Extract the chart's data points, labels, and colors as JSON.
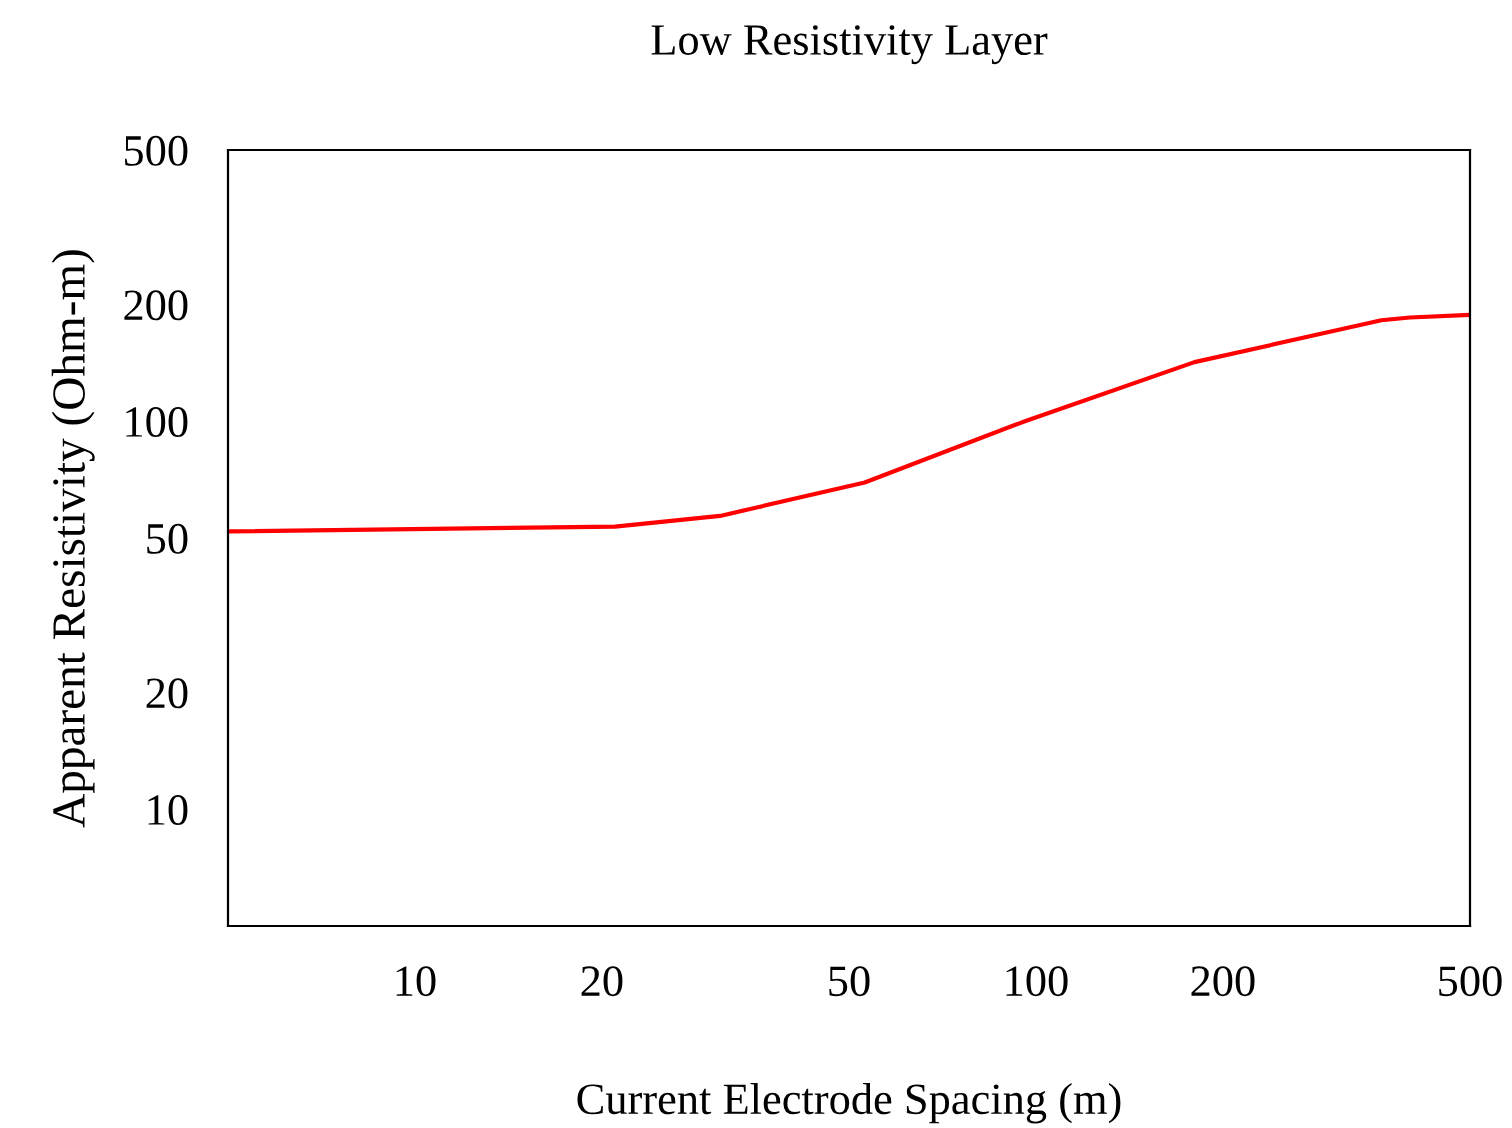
{
  "chart_data": {
    "type": "line",
    "title": "Low Resistivity Layer",
    "xlabel": "Current Electrode Spacing (m)",
    "ylabel": "Apparent Resistivity (Ohm-m)",
    "log": "xy",
    "x": [
      5,
      21,
      31,
      53,
      96,
      180,
      360,
      400,
      500
    ],
    "series": [
      {
        "color": "#ff0000",
        "values": [
          52,
          53.5,
          57,
          69.5,
          100,
          142,
          182,
          185,
          188
        ]
      }
    ],
    "xlim": [
      5,
      500
    ],
    "ylim": [
      5,
      500
    ],
    "xticks": [
      10,
      20,
      50,
      100,
      200,
      500
    ],
    "yticks": [
      10,
      20,
      50,
      100,
      200,
      500
    ],
    "grid": false,
    "legend": false,
    "marker": "none",
    "line_style": "solid"
  }
}
